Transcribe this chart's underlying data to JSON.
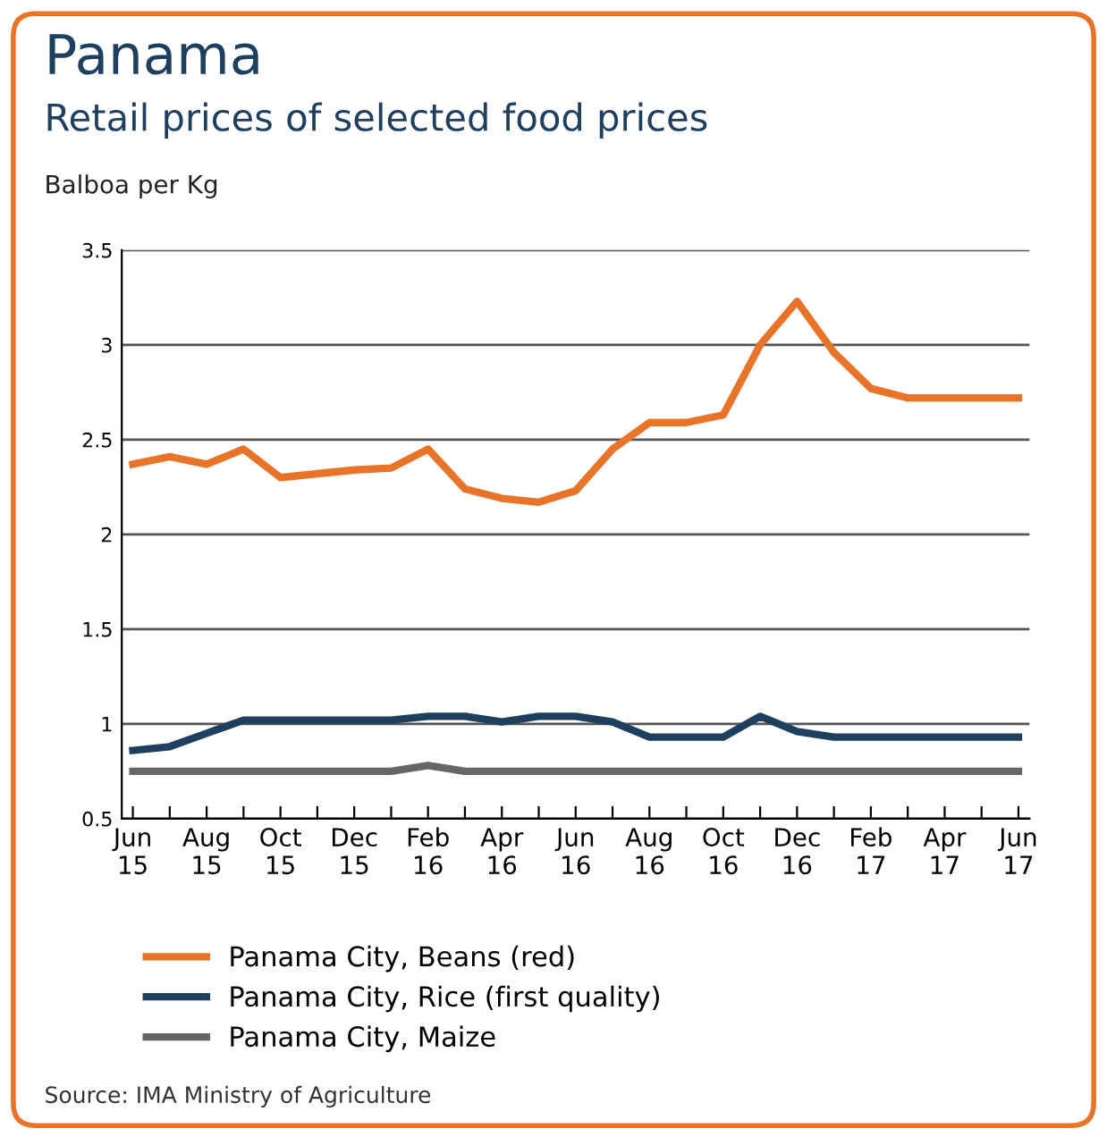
{
  "chart_data": {
    "type": "line",
    "title": "Panama",
    "subtitle": "Retail prices of selected food prices",
    "ylabel": "Balboa per Kg",
    "categories": [
      "Jun\n15",
      null,
      "Aug\n15",
      null,
      "Oct\n15",
      null,
      "Dec\n15",
      null,
      "Feb\n16",
      null,
      "Apr\n16",
      null,
      "Jun\n16",
      null,
      "Aug\n16",
      null,
      "Oct\n16",
      null,
      "Dec\n16",
      null,
      "Feb\n17",
      null,
      "Apr\n17",
      null,
      "Jun\n17"
    ],
    "series": [
      {
        "name": "Panama City, Beans (red)",
        "color": "#e8742a",
        "values": [
          2.37,
          2.41,
          2.37,
          2.45,
          2.3,
          2.32,
          2.34,
          2.35,
          2.45,
          2.24,
          2.19,
          2.17,
          2.23,
          2.45,
          2.59,
          2.59,
          2.63,
          3.0,
          3.23,
          2.96,
          2.77,
          2.72,
          2.72,
          2.72,
          2.72
        ]
      },
      {
        "name": "Panama City, Rice (first quality)",
        "color": "#1f3f5f",
        "values": [
          0.86,
          0.88,
          0.95,
          1.02,
          1.02,
          1.02,
          1.02,
          1.02,
          1.04,
          1.04,
          1.01,
          1.04,
          1.04,
          1.01,
          0.93,
          0.93,
          0.93,
          1.04,
          0.96,
          0.93,
          0.93,
          0.93,
          0.93,
          0.93,
          0.93
        ]
      },
      {
        "name": "Panama City, Maize",
        "color": "#666666",
        "values": [
          0.75,
          0.75,
          0.75,
          0.75,
          0.75,
          0.75,
          0.75,
          0.75,
          0.78,
          0.75,
          0.75,
          0.75,
          0.75,
          0.75,
          0.75,
          0.75,
          0.75,
          0.75,
          0.75,
          0.75,
          0.75,
          0.75,
          0.75,
          0.75,
          0.75
        ]
      }
    ],
    "ylim": [
      0.5,
      3.5
    ],
    "yticks": [
      0.5,
      1,
      1.5,
      2,
      2.5,
      3,
      3.5
    ],
    "grid": "y",
    "legend": "bottom",
    "marker": "none",
    "line_style": "solid",
    "annotations": [
      "Source: IMA Ministry of Agriculture"
    ]
  }
}
